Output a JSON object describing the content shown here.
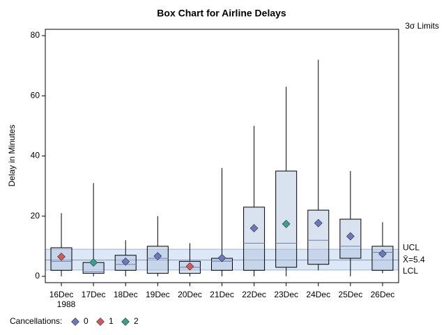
{
  "chart_data": {
    "type": "box",
    "title": "Box Chart for Airline Delays",
    "y_label": "Delay in Minutes",
    "categories": [
      "16Dec",
      "17Dec",
      "18Dec",
      "19Dec",
      "20Dec",
      "21Dec",
      "22Dec",
      "23Dec",
      "24Dec",
      "25Dec",
      "26Dec"
    ],
    "year": "1988",
    "boxes": [
      {
        "low": 0,
        "q1": 2,
        "median": 5,
        "q3": 9.5,
        "high": 21,
        "mean": 6.5,
        "group": 1
      },
      {
        "low": 0,
        "q1": 1,
        "median": 1.5,
        "q3": 4.6,
        "high": 31,
        "mean": 4.6,
        "group": 2
      },
      {
        "low": 0,
        "q1": 2,
        "median": 4,
        "q3": 7,
        "high": 12,
        "mean": 4.9,
        "group": 0
      },
      {
        "low": 0,
        "q1": 1,
        "median": 6,
        "q3": 10,
        "high": 20,
        "mean": 6.7,
        "group": 0
      },
      {
        "low": 0,
        "q1": 1,
        "median": 3,
        "q3": 5,
        "high": 11,
        "mean": 3.3,
        "group": 1
      },
      {
        "low": 0,
        "q1": 2,
        "median": 5,
        "q3": 6,
        "high": 36,
        "mean": 6.1,
        "group": 0
      },
      {
        "low": 0,
        "q1": 2,
        "median": 11,
        "q3": 23,
        "high": 50,
        "mean": 16,
        "group": 0
      },
      {
        "low": 0,
        "q1": 3,
        "median": 11,
        "q3": 35,
        "high": 63,
        "mean": 17.4,
        "group": 2
      },
      {
        "low": 2,
        "q1": 4,
        "median": 12,
        "q3": 22,
        "high": 72,
        "mean": 17.7,
        "group": 0
      },
      {
        "low": 0,
        "q1": 6,
        "median": 10,
        "q3": 19,
        "high": 35,
        "mean": 13.3,
        "group": 0
      },
      {
        "low": 1,
        "q1": 2,
        "median": 8,
        "q3": 10,
        "high": 18,
        "mean": 7.5,
        "group": 0
      }
    ],
    "ylim": [
      -2.1,
      82.1
    ],
    "yticks": [
      0,
      20,
      40,
      60,
      80
    ],
    "limits_title": "3σ Limits",
    "ucl": 9.0,
    "center": 5.4,
    "lcl": 2.1,
    "limit_labels": [
      "UCL",
      "X̄=5.4",
      "LCL"
    ],
    "legend": {
      "title": "Cancellations:",
      "items": [
        {
          "label": "0",
          "color": "#6b78c0"
        },
        {
          "label": "1",
          "color": "#d05a55"
        },
        {
          "label": "2",
          "color": "#3a9f8e"
        }
      ]
    }
  }
}
